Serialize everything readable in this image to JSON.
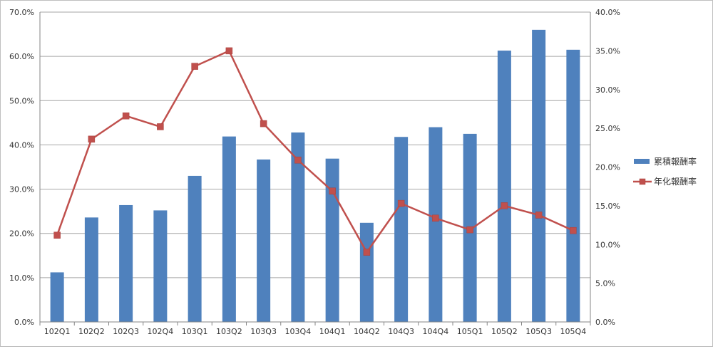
{
  "chart_data": {
    "type": "bar",
    "categories": [
      "102Q1",
      "102Q2",
      "102Q3",
      "102Q4",
      "103Q1",
      "103Q2",
      "103Q3",
      "103Q4",
      "104Q1",
      "104Q2",
      "104Q3",
      "104Q4",
      "105Q1",
      "105Q2",
      "105Q3",
      "105Q4"
    ],
    "series": [
      {
        "name": "累積報酬率",
        "type": "bar",
        "axis": "left",
        "color": "#4f81bd",
        "values": [
          11.2,
          23.6,
          26.4,
          25.2,
          33.0,
          41.9,
          36.7,
          42.8,
          36.9,
          22.4,
          41.8,
          44.0,
          42.5,
          61.3,
          66.0,
          61.5
        ]
      },
      {
        "name": "年化報酬率",
        "type": "line",
        "axis": "right",
        "color": "#c0504d",
        "values": [
          11.2,
          23.6,
          26.6,
          25.2,
          33.0,
          35.0,
          25.6,
          20.9,
          16.9,
          9.0,
          15.3,
          13.4,
          11.9,
          15.0,
          13.8,
          11.8
        ]
      }
    ],
    "ylim_left": [
      0,
      70
    ],
    "ylim_right": [
      0,
      40
    ],
    "yticks_left": [
      "0.0%",
      "10.0%",
      "20.0%",
      "30.0%",
      "40.0%",
      "50.0%",
      "60.0%",
      "70.0%"
    ],
    "yticks_right": [
      "0.0%",
      "5.0%",
      "10.0%",
      "15.0%",
      "20.0%",
      "25.0%",
      "30.0%",
      "35.0%",
      "40.0%"
    ],
    "title": "",
    "xlabel": "",
    "ylabel": "",
    "grid": true,
    "legend_position": "right"
  }
}
